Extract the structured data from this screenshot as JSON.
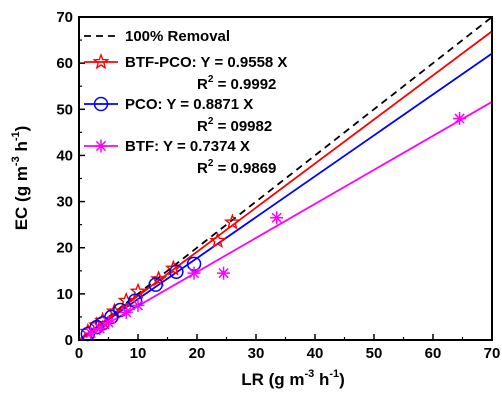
{
  "chart_data": {
    "type": "scatter",
    "xlabel": "LR (g m",
    "xlabel_exp": "-3",
    "xlabel_unit2": " h",
    "xlabel_exp2": "-1",
    "xlabel_close": ")",
    "ylabel": "EC (g m",
    "ylabel_exp": "-3",
    "ylabel_unit2": " h",
    "ylabel_exp2": "-1",
    "ylabel_close": ")",
    "xlim": [
      0,
      70
    ],
    "ylim": [
      0,
      70
    ],
    "x_ticks": [
      "0",
      "10",
      "20",
      "30",
      "40",
      "50",
      "60",
      "70"
    ],
    "y_ticks": [
      "0",
      "10",
      "20",
      "30",
      "40",
      "50",
      "60",
      "70"
    ],
    "grid": false,
    "legend_position": "top-left",
    "reference_line": {
      "name": "100%  Removal",
      "slope": 1.0,
      "style": "dashed",
      "color": "#000000"
    },
    "series": [
      {
        "name": "BTF-PCO: Y = 0.9558 X",
        "r2_label": "R",
        "r2_exp": "2",
        "r2_value": " = 0.9992",
        "slope": 0.9558,
        "color": "#ff0000",
        "marker": "star",
        "points": [
          [
            1.5,
            1.8
          ],
          [
            3.0,
            3.2
          ],
          [
            4.0,
            4.2
          ],
          [
            6.0,
            6.2
          ],
          [
            8.0,
            8.5
          ],
          [
            10.0,
            10.5
          ],
          [
            13.5,
            13.2
          ],
          [
            16.0,
            15.5
          ],
          [
            23.5,
            21.5
          ],
          [
            26.0,
            25.5
          ]
        ]
      },
      {
        "name": "PCO: Y = 0.8871 X",
        "r2_label": "R",
        "r2_exp": "2",
        "r2_value": " = 09982",
        "slope": 0.8871,
        "color": "#0000ff",
        "marker": "circle",
        "points": [
          [
            1.5,
            1.3
          ],
          [
            3.0,
            2.8
          ],
          [
            4.0,
            3.6
          ],
          [
            5.5,
            5.0
          ],
          [
            7.0,
            6.5
          ],
          [
            9.5,
            8.5
          ],
          [
            13.0,
            12.0
          ],
          [
            16.5,
            14.8
          ],
          [
            19.5,
            16.5
          ]
        ]
      },
      {
        "name": "BTF: Y = 0.7374 X",
        "r2_label": "R",
        "r2_exp": "2",
        "r2_value": " = 0.9869",
        "slope": 0.7374,
        "color": "#ff00ff",
        "marker": "asterisk",
        "points": [
          [
            2.0,
            1.5
          ],
          [
            3.5,
            2.5
          ],
          [
            5.0,
            3.8
          ],
          [
            8.0,
            6.0
          ],
          [
            10.0,
            7.5
          ],
          [
            19.5,
            14.5
          ],
          [
            24.5,
            14.5
          ],
          [
            33.5,
            26.5
          ],
          [
            64.5,
            48.0
          ]
        ]
      }
    ]
  }
}
